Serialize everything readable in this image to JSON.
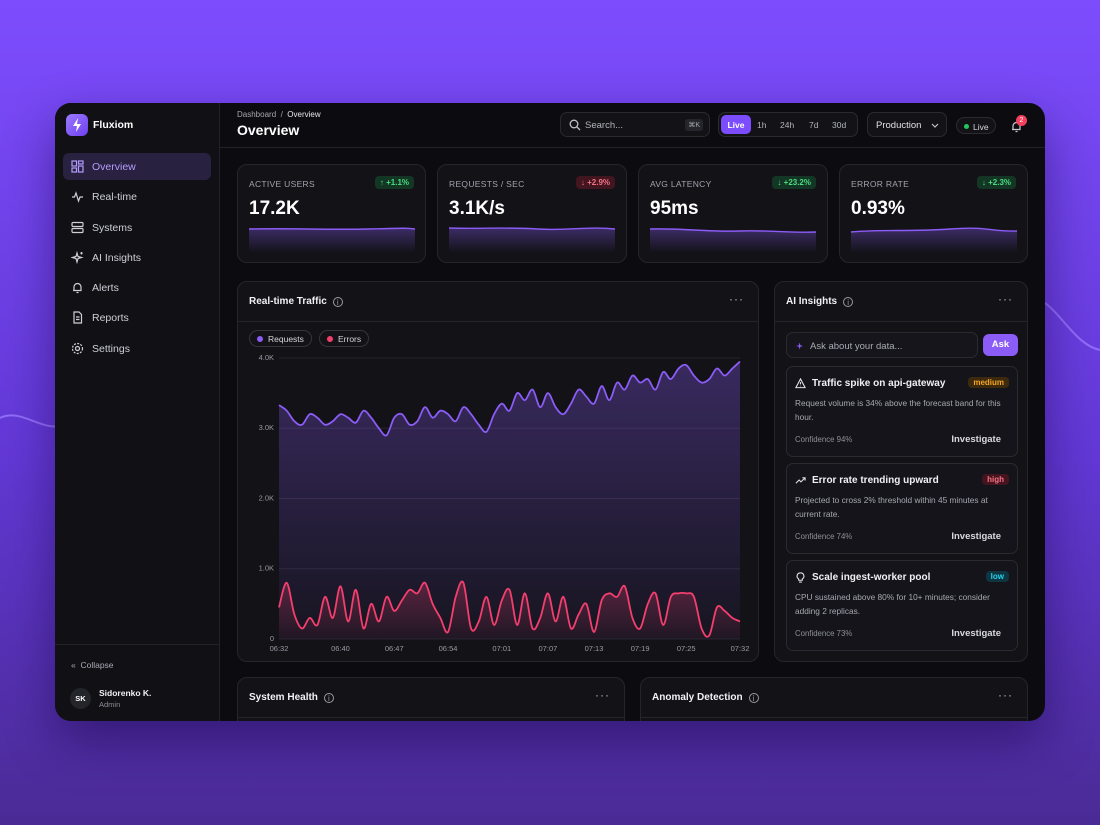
{
  "brand": "Fluxiom",
  "nav": [
    "Overview",
    "Real-time",
    "Systems",
    "AI Insights",
    "Alerts",
    "Reports",
    "Settings"
  ],
  "sidebar_footer": {
    "collapse": "Collapse",
    "user": {
      "initials": "SK",
      "name": "Sidorenko K.",
      "role": "Admin"
    }
  },
  "header": {
    "breadcrumb": [
      "Dashboard",
      "Overview"
    ],
    "breadcrumb_separator": "/",
    "title": "Overview",
    "search_placeholder": "Search...",
    "search_shortcut": "⌘K",
    "time_ranges": [
      "Live",
      "1h",
      "24h",
      "7d",
      "30d"
    ],
    "environment": "Production",
    "status": "Live",
    "notifications": 2
  },
  "kpis": [
    {
      "label": "ACTIVE USERS",
      "value": "17.2K",
      "delta": "+1.1%"
    },
    {
      "label": "REQUESTS / SEC",
      "value": "3.1K/s",
      "delta": "+2.9%"
    },
    {
      "label": "AVG LATENCY",
      "value": "95ms",
      "delta": "+23.2%"
    },
    {
      "label": "ERROR RATE",
      "value": "0.93%",
      "delta": "+2.3%"
    }
  ],
  "panels": {
    "traffic": "Real-time Traffic",
    "ai": "AI Insights",
    "health": "System Health",
    "anomaly": "Anomaly Detection"
  },
  "ai_insights": {
    "input_placeholder": "Ask about your data...",
    "button": "Ask",
    "items": [
      {
        "title": "Traffic spike on api-gateway",
        "severity": "medium",
        "text": "Request volume is 34% above the forecast band for this hour.",
        "confidence": "Confidence 94%",
        "action": "Investigate"
      },
      {
        "title": "Error rate trending upward",
        "severity": "high",
        "text": "Projected to cross 2% threshold within 45 minutes at current rate.",
        "confidence": "Confidence 74%",
        "action": "Investigate"
      },
      {
        "title": "Scale ingest-worker pool",
        "severity": "low",
        "text": "CPU sustained above 80% for 10+ minutes; consider adding 2 replicas.",
        "confidence": "Confidence 73%",
        "action": "Investigate"
      }
    ]
  },
  "chart_data": {
    "type": "line",
    "x": [
      "06:32",
      "06:33",
      "06:34",
      "06:35",
      "06:36",
      "06:37",
      "06:38",
      "06:39",
      "06:40",
      "06:41",
      "06:42",
      "06:43",
      "06:44",
      "06:45",
      "06:46",
      "06:47",
      "06:48",
      "06:49",
      "06:50",
      "06:51",
      "06:52",
      "06:53",
      "06:54",
      "06:55",
      "06:56",
      "06:57",
      "06:58",
      "06:59",
      "07:00",
      "07:01",
      "07:02",
      "07:03",
      "07:04",
      "07:05",
      "07:06",
      "07:07",
      "07:08",
      "07:09",
      "07:10",
      "07:11",
      "07:12",
      "07:13",
      "07:14",
      "07:15",
      "07:16",
      "07:17",
      "07:18",
      "07:19",
      "07:20",
      "07:21",
      "07:22",
      "07:23",
      "07:24",
      "07:25",
      "07:26",
      "07:27",
      "07:28",
      "07:29",
      "07:30",
      "07:31",
      "07:32"
    ],
    "xticks": [
      "06:32",
      "06:40",
      "06:47",
      "06:54",
      "07:01",
      "07:07",
      "07:13",
      "07:19",
      "07:25",
      "07:32"
    ],
    "ylim": [
      0,
      4000
    ],
    "yticks": [
      0,
      {
        "value": 1000,
        "label": "1.0K"
      },
      {
        "value": 2000,
        "label": "2.0K"
      },
      {
        "value": 3000,
        "label": "3.0K"
      },
      {
        "value": 4000,
        "label": "4.0K"
      }
    ],
    "grid": true,
    "series": [
      {
        "name": "Requests",
        "color": "#8b5cf6",
        "values": [
          3330,
          3250,
          3100,
          3050,
          3200,
          3150,
          3050,
          3100,
          3200,
          3150,
          3080,
          3250,
          3150,
          3000,
          2900,
          3150,
          3200,
          3050,
          3100,
          3300,
          3150,
          3250,
          3200,
          3100,
          3300,
          3200,
          3050,
          2950,
          3200,
          3350,
          3250,
          3500,
          3400,
          3550,
          3300,
          3500,
          3300,
          3200,
          3350,
          3550,
          3450,
          3350,
          3600,
          3400,
          3650,
          3550,
          3750,
          3650,
          3700,
          3550,
          3800,
          3700,
          3850,
          3900,
          3750,
          3650,
          3700,
          3850,
          3750,
          3850,
          3950
        ]
      },
      {
        "name": "Errors",
        "color": "#f43f6e",
        "values": [
          450,
          800,
          350,
          150,
          300,
          200,
          600,
          300,
          750,
          250,
          700,
          150,
          500,
          250,
          600,
          400,
          550,
          700,
          650,
          800,
          500,
          300,
          100,
          600,
          800,
          150,
          250,
          600,
          200,
          550,
          700,
          200,
          650,
          150,
          300,
          650,
          250,
          600,
          150,
          350,
          500,
          100,
          550,
          650,
          600,
          750,
          300,
          150,
          500,
          650,
          200,
          600,
          650,
          650,
          600,
          150,
          50,
          450,
          400,
          300,
          250
        ]
      }
    ]
  }
}
